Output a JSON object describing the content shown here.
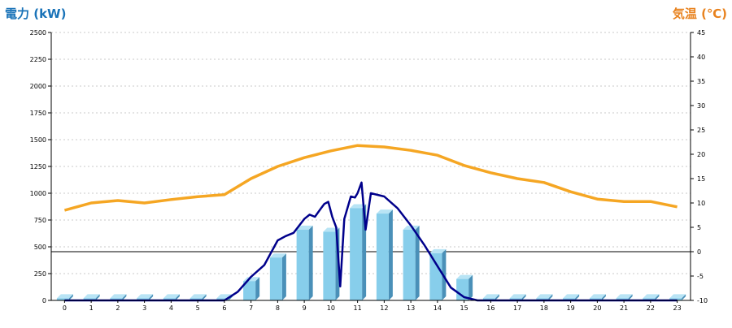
{
  "chart_data": {
    "type": "bar",
    "left_axis": {
      "title": "電力 (kW)",
      "color": "#1a73b8",
      "ylim": [
        0,
        2500
      ],
      "ticks": [
        "0",
        "250",
        "500",
        "750",
        "1000",
        "1250",
        "1500",
        "1750",
        "2000",
        "2250",
        "2500"
      ]
    },
    "right_axis": {
      "title": "気温 (℃)",
      "color": "#e8821e",
      "ylim": [
        -10,
        45
      ],
      "ticks": [
        "-10",
        "-5",
        "0",
        "5",
        "10",
        "15",
        "20",
        "25",
        "30",
        "35",
        "40",
        "45"
      ]
    },
    "categories": [
      "0",
      "1",
      "2",
      "3",
      "4",
      "5",
      "6",
      "7",
      "8",
      "9",
      "10",
      "11",
      "12",
      "13",
      "14",
      "15",
      "16",
      "17",
      "18",
      "19",
      "20",
      "21",
      "22",
      "23"
    ],
    "series": [
      {
        "type": "bar",
        "axis": "left",
        "color": "#87ceeb",
        "values": [
          20,
          20,
          20,
          20,
          20,
          20,
          20,
          180,
          400,
          660,
          640,
          860,
          810,
          660,
          440,
          200,
          20,
          20,
          20,
          20,
          20,
          20,
          20,
          20
        ]
      },
      {
        "type": "line",
        "axis": "left",
        "color": "#00008b",
        "x": [
          0,
          1,
          2,
          3,
          4,
          5,
          6,
          6.5,
          7,
          7.5,
          8,
          8.3,
          8.6,
          9,
          9.2,
          9.4,
          9.6,
          9.75,
          9.9,
          10.05,
          10.2,
          10.35,
          10.5,
          10.75,
          10.9,
          11,
          11.15,
          11.3,
          11.5,
          12,
          12.5,
          13,
          13.5,
          14,
          14.5,
          15,
          15.5,
          15.8,
          16,
          17,
          18,
          19,
          20,
          21,
          22,
          23
        ],
        "values": [
          0,
          0,
          0,
          0,
          0,
          0,
          0,
          80,
          220,
          330,
          560,
          600,
          630,
          760,
          800,
          780,
          850,
          900,
          920,
          780,
          680,
          130,
          760,
          970,
          960,
          1000,
          1100,
          660,
          1000,
          970,
          860,
          700,
          520,
          320,
          120,
          30,
          0,
          0,
          0,
          0,
          0,
          0,
          0,
          0,
          0,
          0
        ]
      },
      {
        "type": "line",
        "axis": "right",
        "color": "#f5a623",
        "x": [
          0,
          1,
          2,
          3,
          4,
          5,
          6,
          7,
          8,
          9,
          10,
          11,
          12,
          13,
          14,
          15,
          16,
          17,
          18,
          19,
          20,
          21,
          22,
          23
        ],
        "values": [
          8.5,
          10,
          10.5,
          10,
          10.7,
          11.3,
          11.7,
          15,
          17.5,
          19.3,
          20.7,
          21.8,
          21.5,
          20.8,
          19.8,
          17.7,
          16.2,
          15,
          14.2,
          12.3,
          10.8,
          10.3,
          10.3,
          9.2
        ]
      }
    ],
    "grid": true
  }
}
